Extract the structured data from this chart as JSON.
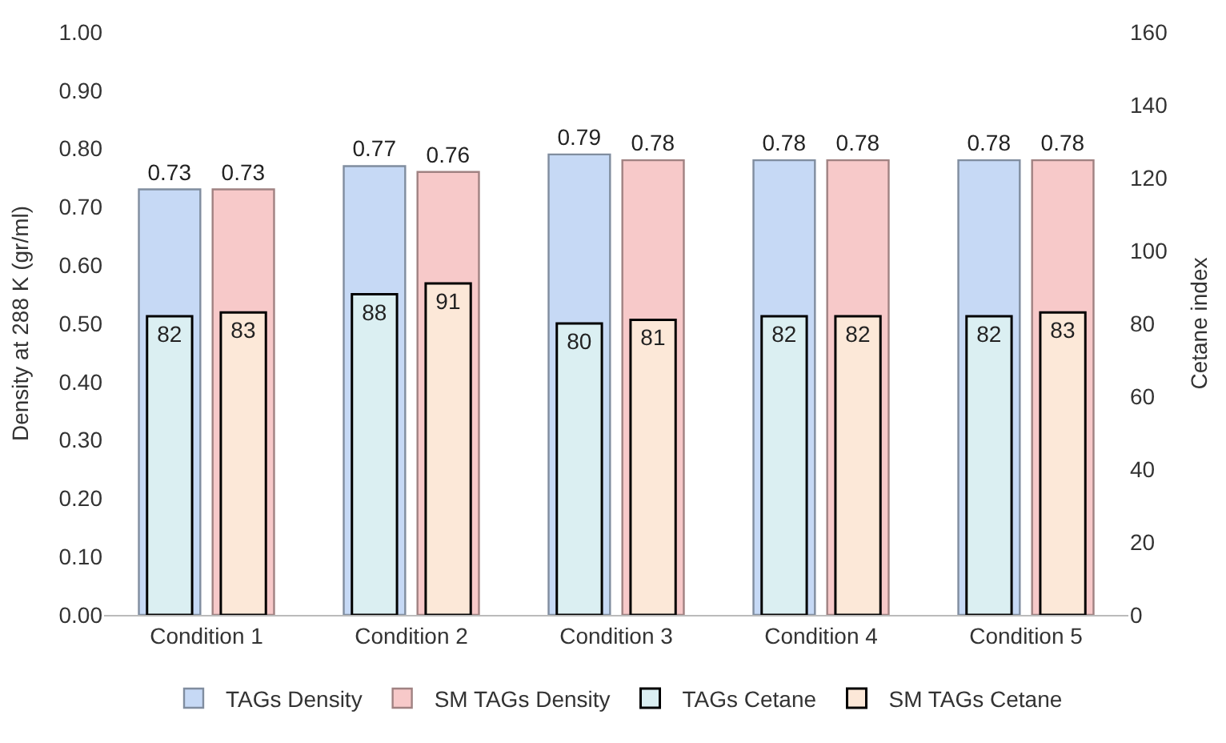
{
  "chart_data": {
    "type": "bar",
    "ylabel": "Density at 288 K (gr/ml)",
    "y2label": "Cetane index",
    "categories": [
      "Condition 1",
      "Condition 2",
      "Condition 3",
      "Condition 4",
      "Condition 5"
    ],
    "series": [
      {
        "name": "TAGs Density",
        "color": "#c6d9f5",
        "values": [
          0.73,
          0.77,
          0.79,
          0.78,
          0.78
        ]
      },
      {
        "name": "SM TAGs Density",
        "color": "#f7c9c9",
        "values": [
          0.73,
          0.76,
          0.78,
          0.78,
          0.78
        ]
      },
      {
        "name": "TAGs Cetane",
        "color": "#dbeff2",
        "values": [
          82,
          88,
          80,
          82,
          82
        ],
        "axis": "y2"
      },
      {
        "name": "SM TAGs Cetane",
        "color": "#fce8d8",
        "values": [
          83,
          91,
          81,
          82,
          83
        ],
        "axis": "y2"
      }
    ],
    "ylim": [
      0,
      1
    ],
    "yticks": [
      {
        "value": 0,
        "label": "0.00"
      },
      {
        "value": 0.1,
        "label": "0.10"
      },
      {
        "value": 0.2,
        "label": "0.20"
      },
      {
        "value": 0.3,
        "label": "0.30"
      },
      {
        "value": 0.4,
        "label": "0.40"
      },
      {
        "value": 0.5,
        "label": "0.50"
      },
      {
        "value": 0.6,
        "label": "0.60"
      },
      {
        "value": 0.7,
        "label": "0.70"
      },
      {
        "value": 0.8,
        "label": "0.80"
      },
      {
        "value": 0.9,
        "label": "0.90"
      },
      {
        "value": 1,
        "label": "1.00"
      }
    ],
    "y2lim": [
      0,
      160
    ],
    "y2ticks": [
      0,
      20,
      40,
      60,
      80,
      100,
      120,
      140,
      160
    ],
    "data_labels": true,
    "legend": "bottom"
  }
}
